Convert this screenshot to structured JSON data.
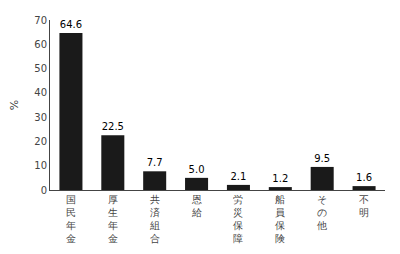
{
  "chart_data": {
    "type": "bar",
    "categories": [
      "国\n民\n年\n金",
      "厚\n生\n年\n金",
      "共\n済\n組\n合",
      "恩\n給",
      "労\n災\n保\n障",
      "船\n員\n保\n険",
      "そ\n の\n他",
      "不\n明"
    ],
    "values": [
      64.6,
      22.5,
      7.7,
      5.0,
      2.1,
      1.2,
      9.5,
      1.6
    ],
    "value_labels": [
      "64.6",
      "22.5",
      "7.7",
      "5.0",
      "2.1",
      "1.2",
      "9.5",
      "1.6"
    ],
    "data_labels": true,
    "color": "#1a1a1a",
    "ylabel": "%",
    "ylim": [
      0,
      70
    ],
    "yticks": [
      0,
      10,
      20,
      30,
      40,
      50,
      60,
      70
    ],
    "grid": false
  }
}
